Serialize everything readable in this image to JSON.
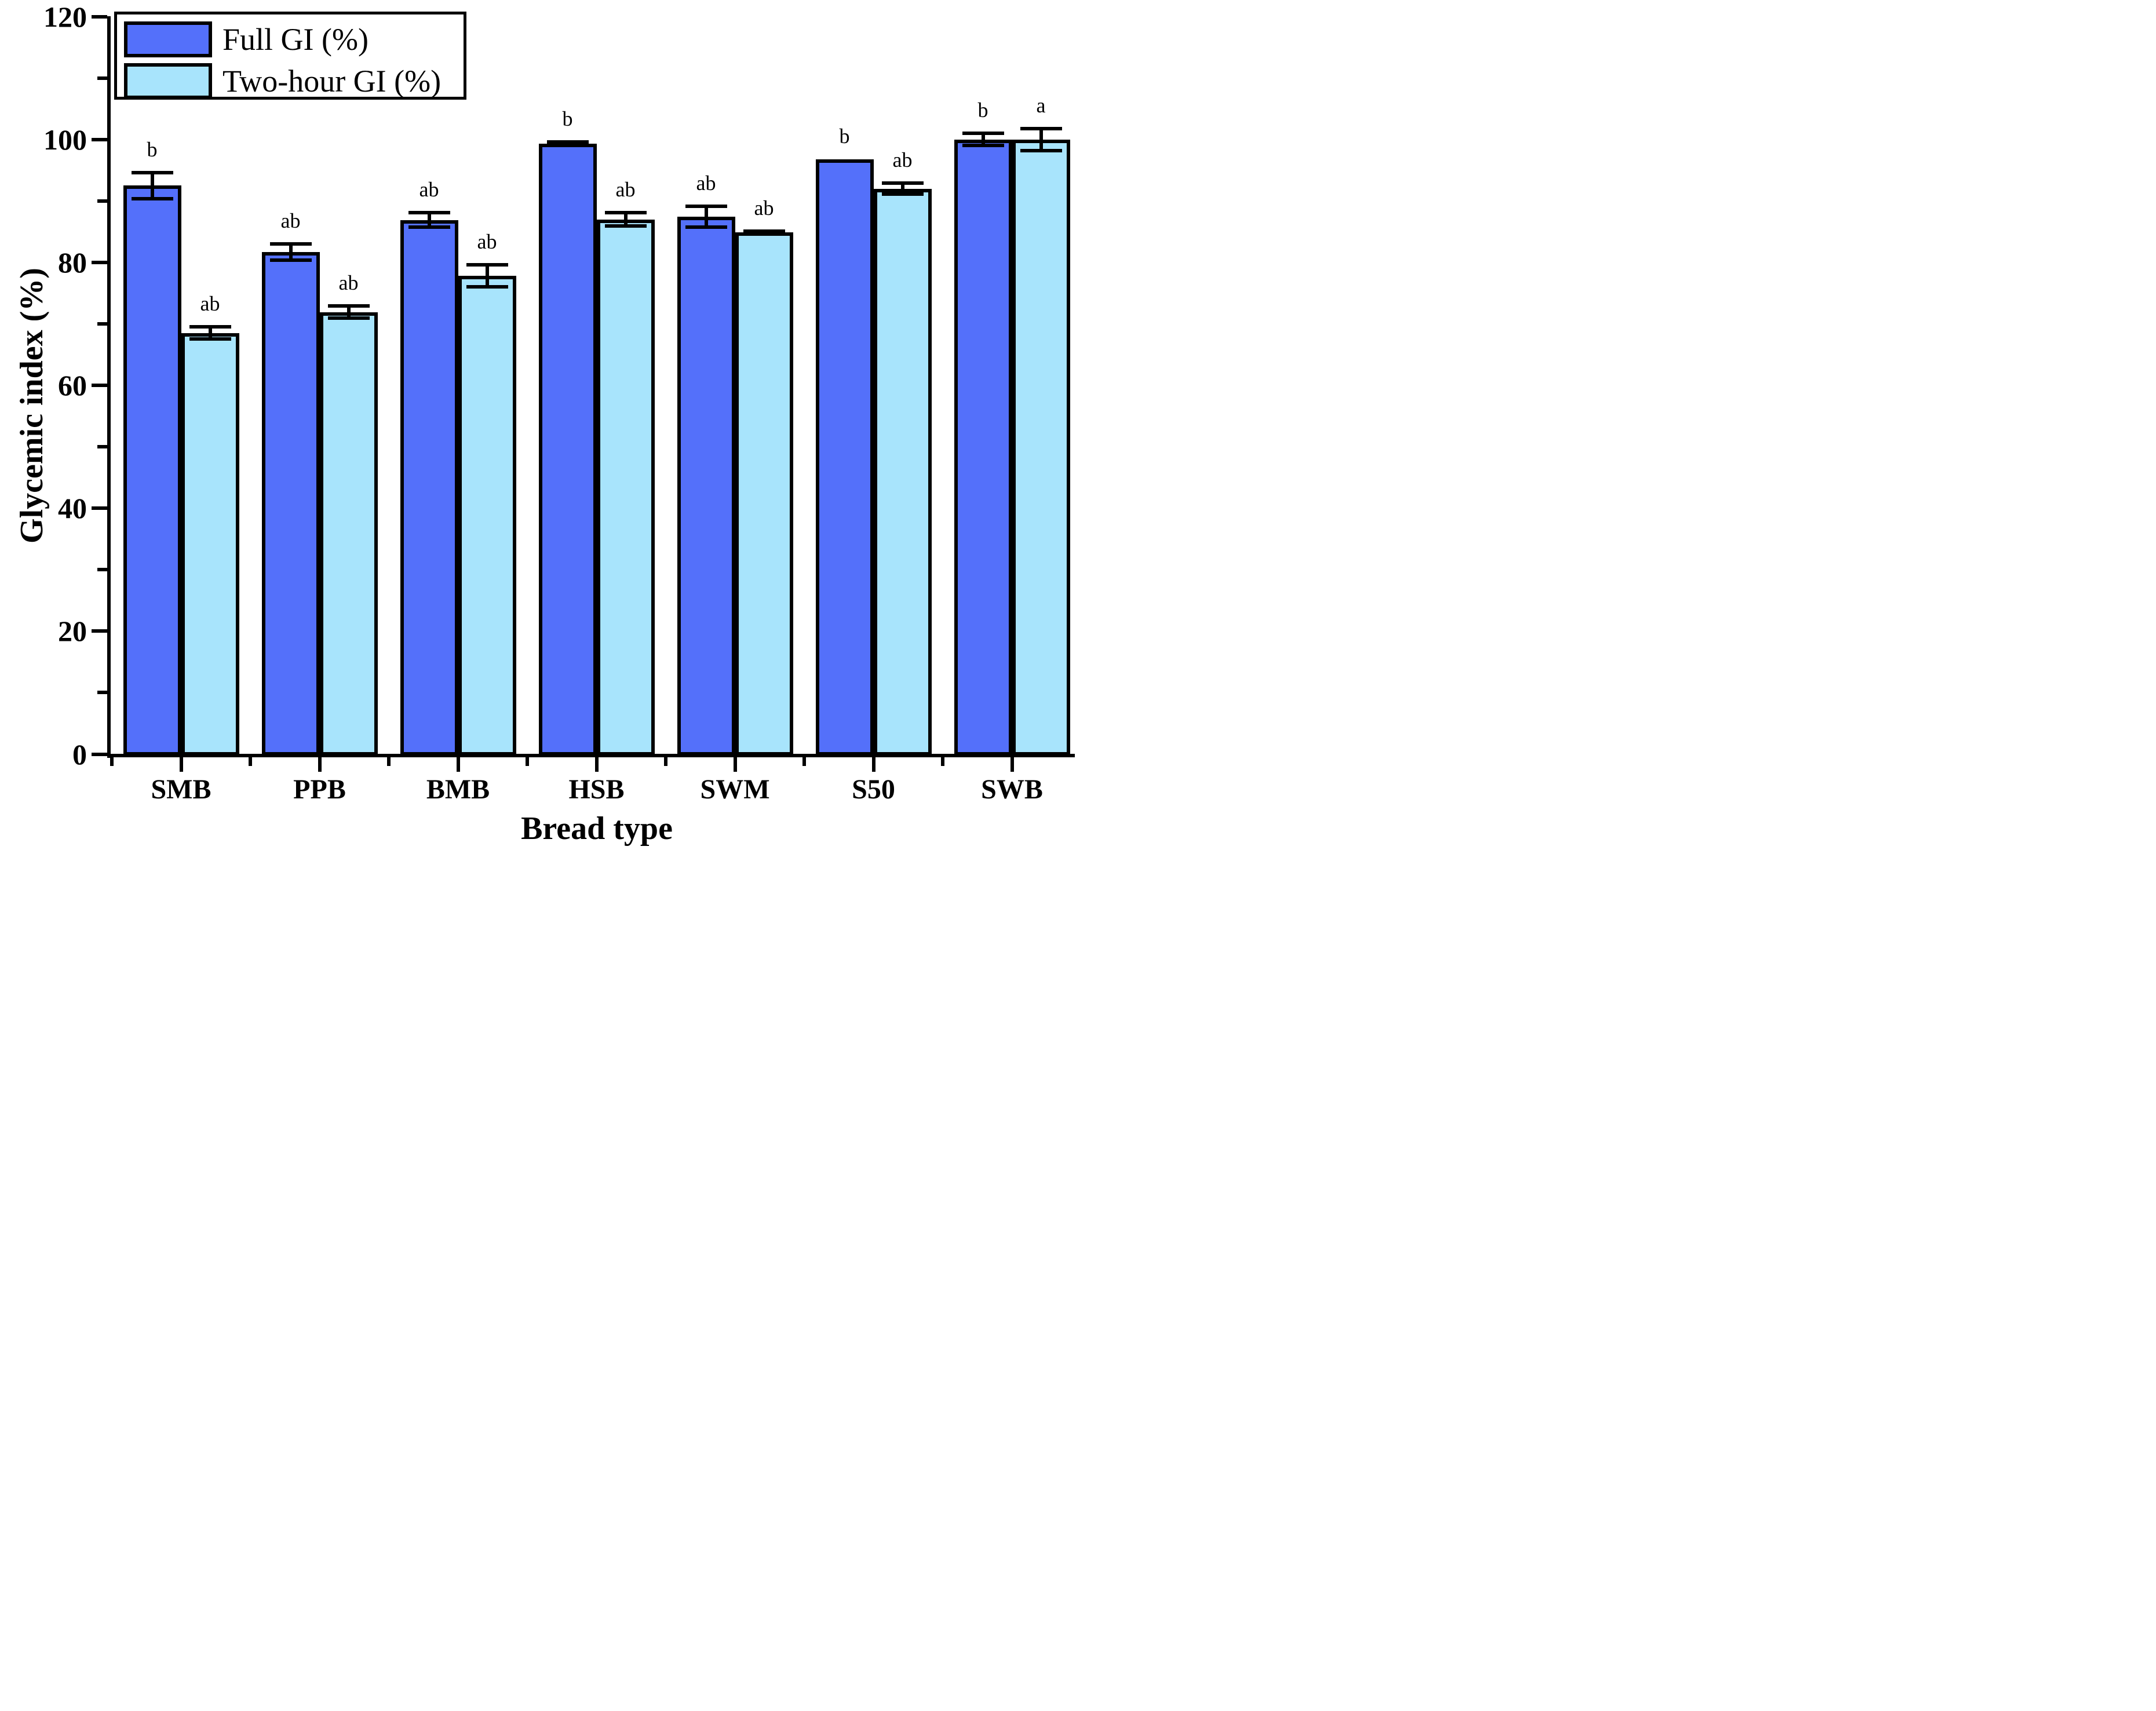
{
  "chart_data": {
    "type": "bar",
    "title": "",
    "xlabel": "Bread type",
    "ylabel": "Glycemic index (%)",
    "categories": [
      "SMB",
      "PPB",
      "BMB",
      "HSB",
      "SWM",
      "S50",
      "SWB"
    ],
    "series": [
      {
        "name": "Full GI (%)",
        "color": "#5470fa",
        "values": [
          92.5,
          81.7,
          86.9,
          99.3,
          87.4,
          96.8,
          100.0
        ],
        "errors": [
          2.1,
          1.3,
          1.2,
          0.3,
          1.7,
          0,
          1.0
        ],
        "sig_letters": [
          "b",
          "ab",
          "ab",
          "b",
          "ab",
          "b",
          "b"
        ]
      },
      {
        "name": "Two-hour GI (%)",
        "color": "#a8e4fc",
        "values": [
          68.5,
          71.9,
          77.8,
          87.0,
          84.9,
          92.0,
          100.0
        ],
        "errors": [
          1.0,
          1.0,
          1.8,
          1.1,
          0.2,
          0.9,
          1.8
        ],
        "sig_letters": [
          "ab",
          "ab",
          "ab",
          "ab",
          "ab",
          "ab",
          "a"
        ]
      }
    ],
    "ylim": [
      0,
      120
    ],
    "y_major_ticks": [
      0,
      20,
      40,
      60,
      80,
      100,
      120
    ],
    "y_minor_ticks": [
      10,
      30,
      50,
      70,
      90,
      110
    ],
    "grid": "off",
    "legend_position": "top-left",
    "bar_edge_color": "#000000",
    "background_color": "#ffffff"
  }
}
